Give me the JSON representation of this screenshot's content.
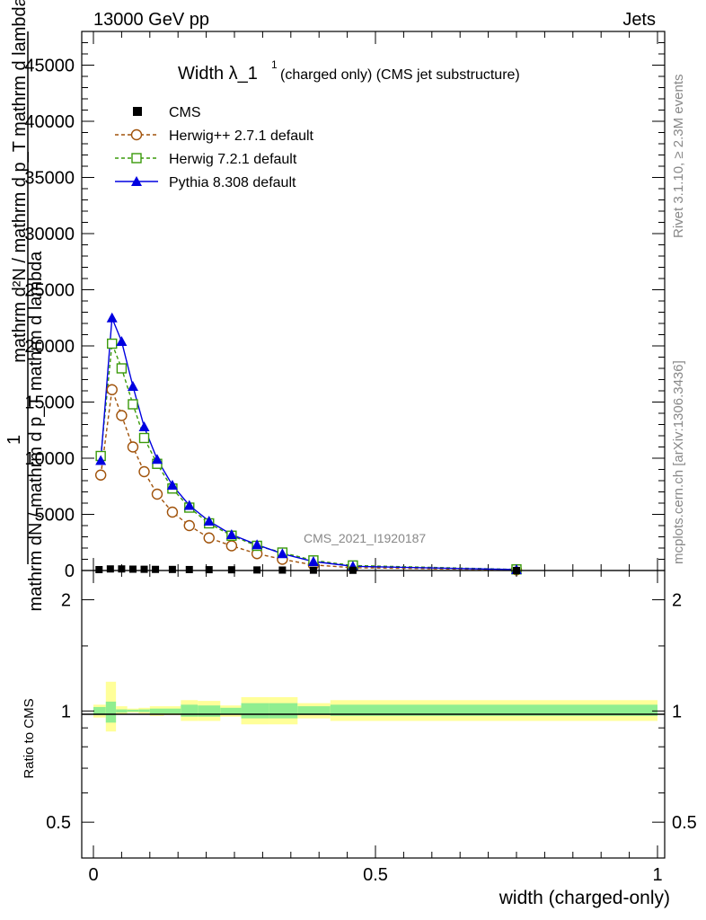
{
  "header": {
    "left": "13000 GeV pp",
    "right": "Jets"
  },
  "side_labels": {
    "rivet": "Rivet 3.1.10, ≥ 2.3M events",
    "mcplots": "mcplots.cern.ch [arXiv:1306.3436]"
  },
  "watermark": "CMS_2021_I1920187",
  "colors": {
    "cms": "#000000",
    "herwigpp": "#a0520a",
    "herwig7": "#3a9a0a",
    "pythia": "#0000e0",
    "band_outer": "#ffff99",
    "band_inner": "#90ee90"
  },
  "chart_data": [
    {
      "type": "line",
      "title": "Width λ_1",
      "title_sup": "1",
      "subtitle": "(charged only) (CMS jet substructure)",
      "ylabel_top": "1",
      "ylabel_frac": "mathrm dN / mathrm d p_T mathrm d lambda",
      "ylabel_main": "mathrm d²N / mathrm d p_T mathrm d lambda",
      "ylim": [
        0,
        48000
      ],
      "xlim": [
        -0.01,
        1.0
      ],
      "y_ticks": [
        "0",
        "5000",
        "10000",
        "15000",
        "20000",
        "25000",
        "30000",
        "35000",
        "40000",
        "45000"
      ],
      "y_tick_values": [
        0,
        5000,
        10000,
        15000,
        20000,
        25000,
        30000,
        35000,
        40000,
        45000
      ],
      "legend": [
        "CMS",
        "Herwig++ 2.7.1 default",
        "Herwig 7.2.1 default",
        "Pythia 8.308 default"
      ],
      "series": [
        {
          "name": "CMS",
          "x": [
            0.01,
            0.03,
            0.05,
            0.07,
            0.09,
            0.11,
            0.14,
            0.17,
            0.205,
            0.245,
            0.29,
            0.335,
            0.39,
            0.46,
            0.75
          ],
          "values": [
            80,
            140,
            140,
            120,
            110,
            100,
            95,
            85,
            75,
            65,
            50,
            40,
            30,
            20,
            5
          ]
        },
        {
          "name": "Herwig++ 2.7.1 default",
          "x": [
            0.013,
            0.033,
            0.05,
            0.07,
            0.09,
            0.113,
            0.14,
            0.17,
            0.205,
            0.245,
            0.29,
            0.335,
            0.39,
            0.46,
            0.75
          ],
          "values": [
            8500,
            16100,
            13800,
            11000,
            8800,
            6800,
            5200,
            4000,
            2900,
            2200,
            1500,
            1000,
            500,
            250,
            60
          ]
        },
        {
          "name": "Herwig 7.2.1 default",
          "x": [
            0.013,
            0.033,
            0.05,
            0.07,
            0.09,
            0.113,
            0.14,
            0.17,
            0.205,
            0.245,
            0.29,
            0.335,
            0.39,
            0.46,
            0.75
          ],
          "values": [
            10200,
            20200,
            18000,
            14800,
            11800,
            9500,
            7300,
            5600,
            4200,
            3100,
            2200,
            1600,
            900,
            450,
            100
          ]
        },
        {
          "name": "Pythia 8.308 default",
          "x": [
            0.013,
            0.033,
            0.05,
            0.07,
            0.09,
            0.113,
            0.14,
            0.17,
            0.205,
            0.245,
            0.29,
            0.335,
            0.39,
            0.46,
            0.75
          ],
          "values": [
            9800,
            22500,
            20400,
            16400,
            12800,
            9900,
            7600,
            5800,
            4400,
            3200,
            2300,
            1500,
            800,
            380,
            80
          ]
        }
      ]
    },
    {
      "type": "area",
      "ylabel": "Ratio to CMS",
      "xlabel": "width (charged-only)",
      "ylim": [
        0.4,
        2.4
      ],
      "scale": "log",
      "y_ticks": [
        "0.5",
        "1",
        "2"
      ],
      "y_tick_values": [
        0.5,
        1,
        2
      ],
      "x_ticks": [
        "0",
        "0.5",
        "1"
      ],
      "x_tick_values": [
        0,
        0.5,
        1
      ],
      "reference": 1,
      "bands": [
        {
          "x0": 0.0,
          "x1": 0.022,
          "outer": [
            0.96,
            1.04
          ],
          "inner": [
            0.975,
            1.025
          ]
        },
        {
          "x0": 0.022,
          "x1": 0.04,
          "outer": [
            0.88,
            1.2
          ],
          "inner": [
            0.93,
            1.06
          ]
        },
        {
          "x0": 0.04,
          "x1": 0.06,
          "outer": [
            0.98,
            1.03
          ],
          "inner": [
            0.99,
            1.01
          ]
        },
        {
          "x0": 0.06,
          "x1": 0.08,
          "outer": [
            0.99,
            1.015
          ],
          "inner": [
            0.995,
            1.008
          ]
        },
        {
          "x0": 0.08,
          "x1": 0.1,
          "outer": [
            0.985,
            1.02
          ],
          "inner": [
            0.993,
            1.01
          ]
        },
        {
          "x0": 0.1,
          "x1": 0.125,
          "outer": [
            0.97,
            1.03
          ],
          "inner": [
            0.985,
            1.015
          ]
        },
        {
          "x0": 0.125,
          "x1": 0.155,
          "outer": [
            0.975,
            1.03
          ],
          "inner": [
            0.985,
            1.015
          ]
        },
        {
          "x0": 0.155,
          "x1": 0.185,
          "outer": [
            0.94,
            1.07
          ],
          "inner": [
            0.965,
            1.04
          ]
        },
        {
          "x0": 0.185,
          "x1": 0.225,
          "outer": [
            0.94,
            1.065
          ],
          "inner": [
            0.965,
            1.035
          ]
        },
        {
          "x0": 0.225,
          "x1": 0.262,
          "outer": [
            0.965,
            1.035
          ],
          "inner": [
            0.98,
            1.02
          ]
        },
        {
          "x0": 0.262,
          "x1": 0.312,
          "outer": [
            0.92,
            1.09
          ],
          "inner": [
            0.955,
            1.05
          ]
        },
        {
          "x0": 0.312,
          "x1": 0.362,
          "outer": [
            0.92,
            1.09
          ],
          "inner": [
            0.955,
            1.05
          ]
        },
        {
          "x0": 0.362,
          "x1": 0.42,
          "outer": [
            0.955,
            1.05
          ],
          "inner": [
            0.975,
            1.03
          ]
        },
        {
          "x0": 0.42,
          "x1": 1.0,
          "outer": [
            0.94,
            1.07
          ],
          "inner": [
            0.97,
            1.04
          ]
        }
      ]
    }
  ]
}
